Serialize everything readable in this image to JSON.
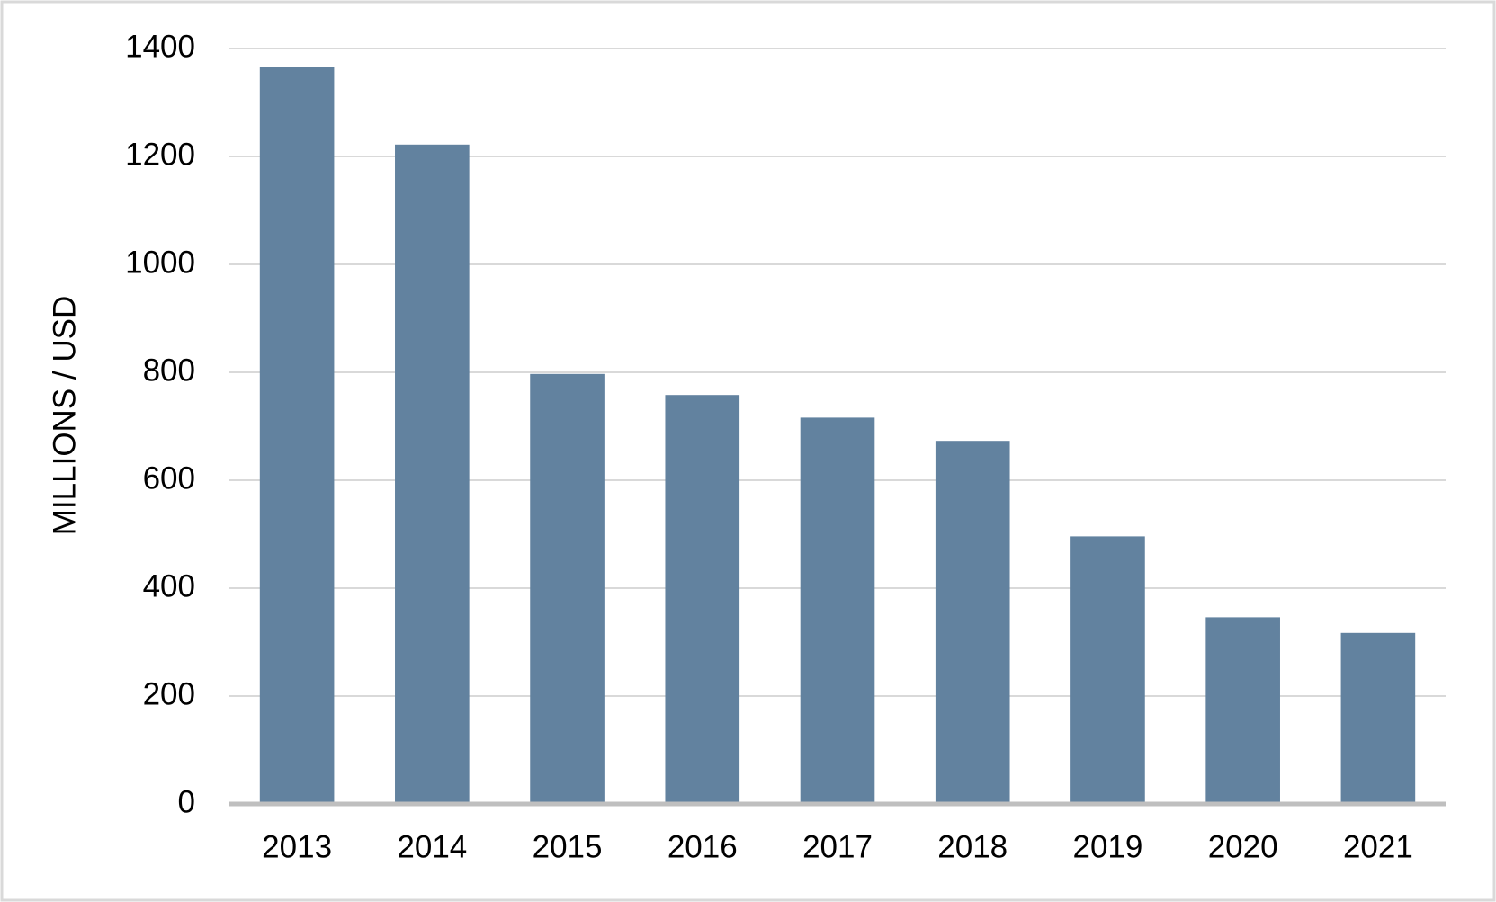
{
  "chart_data": {
    "type": "bar",
    "y_label": "MILLIONS / USD",
    "categories": [
      "2013",
      "2014",
      "2015",
      "2016",
      "2017",
      "2018",
      "2019",
      "2020",
      "2021"
    ],
    "values": [
      1365,
      1222,
      797,
      758,
      716,
      673,
      496,
      346,
      317
    ],
    "color": "#62829f",
    "ylim": [
      0,
      1400
    ],
    "yticks": [
      0,
      200,
      400,
      600,
      800,
      1000,
      1200,
      1400
    ],
    "grid": true
  }
}
